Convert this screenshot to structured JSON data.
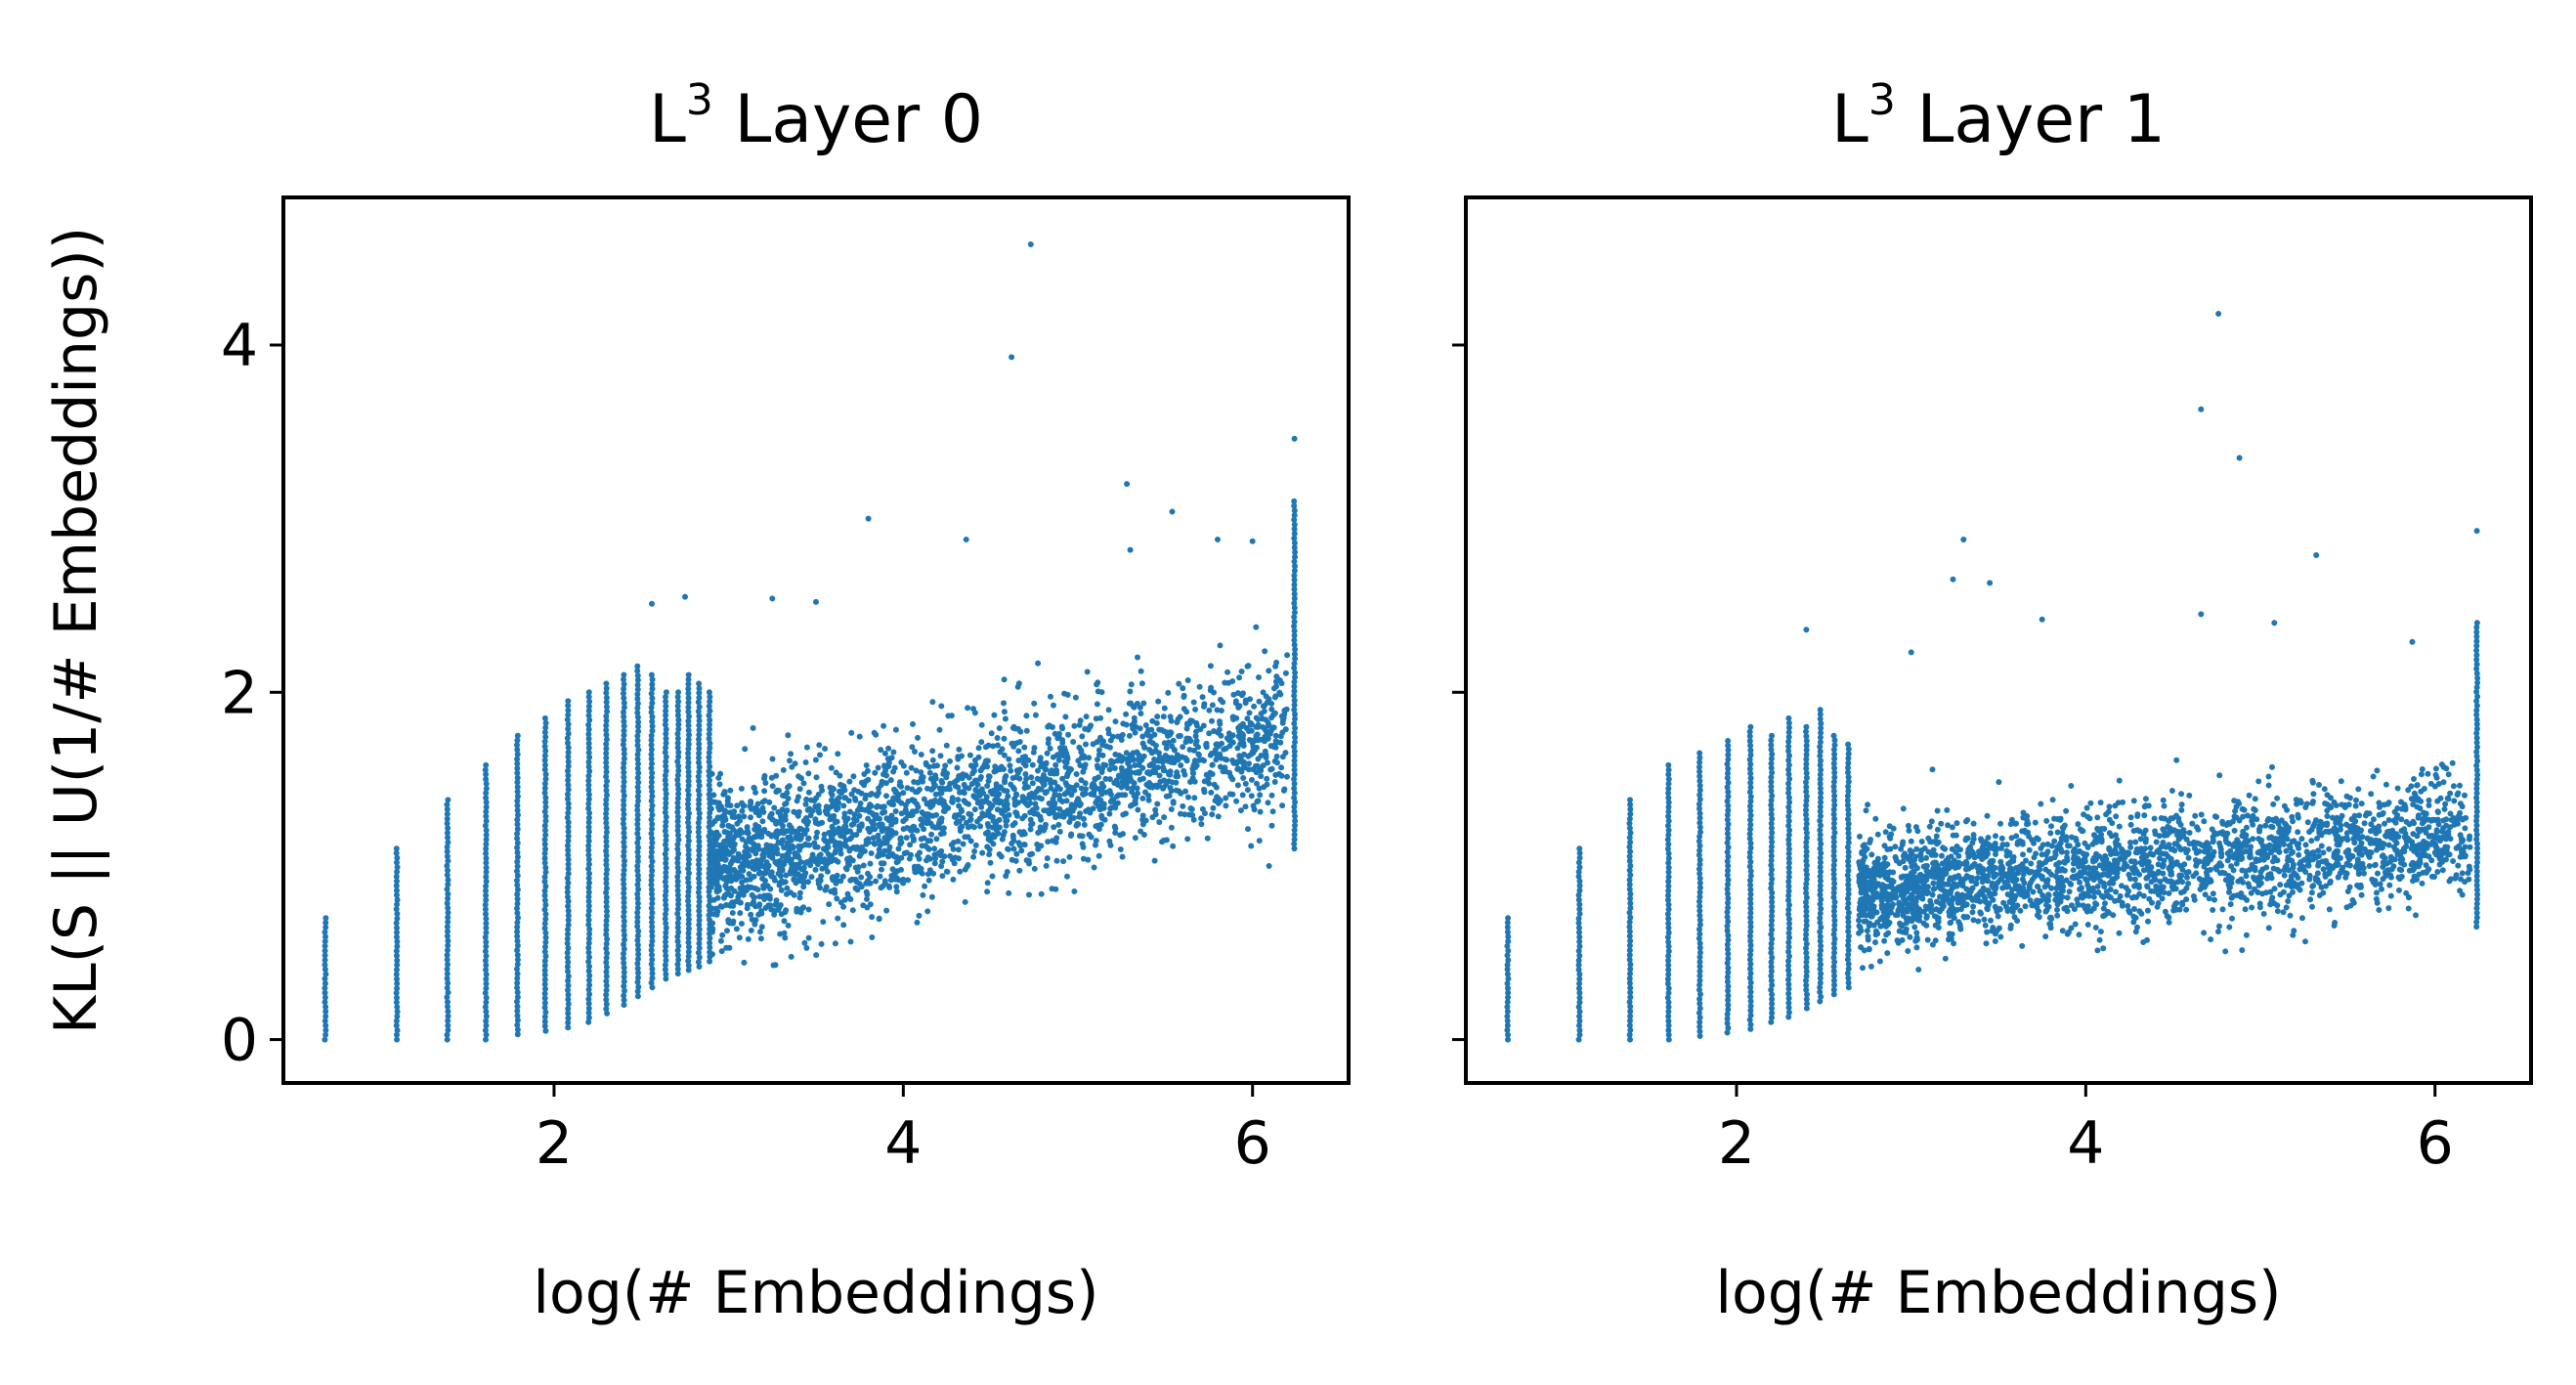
{
  "figure": {
    "ylabel": "KL(S || U(1/# Embeddings))",
    "sharey": true,
    "ylim": [
      -0.25,
      4.85
    ],
    "xlim": [
      0.45,
      6.55
    ],
    "xticks": [
      2,
      4,
      6
    ],
    "yticks": [
      0,
      2,
      4
    ],
    "marker_color": "#1f77b4"
  },
  "chart_data": [
    {
      "type": "scatter",
      "title_base": "L",
      "title_sup": "3",
      "title_rest": " Layer 0",
      "xlabel": "log(# Embeddings)",
      "ylabel": "KL(S || U(1/# Embeddings))",
      "xlim": [
        0.45,
        6.55
      ],
      "ylim": [
        -0.25,
        4.85
      ],
      "xticks": [
        "2",
        "4",
        "6"
      ],
      "yticks": [
        "0",
        "2",
        "4"
      ],
      "series": [
        {
          "name": "Layer 0",
          "columns": [
            {
              "x": 0.69,
              "ymin": 0.0,
              "ymax": 0.7
            },
            {
              "x": 1.1,
              "ymin": 0.0,
              "ymax": 1.1
            },
            {
              "x": 1.39,
              "ymin": 0.0,
              "ymax": 1.38
            },
            {
              "x": 1.61,
              "ymin": 0.0,
              "ymax": 1.58
            },
            {
              "x": 1.79,
              "ymin": 0.03,
              "ymax": 1.75
            },
            {
              "x": 1.95,
              "ymin": 0.05,
              "ymax": 1.85
            },
            {
              "x": 2.08,
              "ymin": 0.07,
              "ymax": 1.95
            },
            {
              "x": 2.2,
              "ymin": 0.1,
              "ymax": 2.0
            },
            {
              "x": 2.3,
              "ymin": 0.15,
              "ymax": 2.05
            },
            {
              "x": 2.4,
              "ymin": 0.2,
              "ymax": 2.1
            },
            {
              "x": 2.48,
              "ymin": 0.25,
              "ymax": 2.15
            },
            {
              "x": 2.56,
              "ymin": 0.3,
              "ymax": 2.1
            },
            {
              "x": 2.64,
              "ymin": 0.35,
              "ymax": 2.0
            },
            {
              "x": 2.71,
              "ymin": 0.38,
              "ymax": 2.0
            },
            {
              "x": 2.77,
              "ymin": 0.4,
              "ymax": 2.1
            },
            {
              "x": 2.83,
              "ymin": 0.42,
              "ymax": 2.05
            },
            {
              "x": 2.89,
              "ymin": 0.45,
              "ymax": 2.0
            },
            {
              "x": 6.24,
              "ymin": 1.1,
              "ymax": 3.1
            }
          ],
          "cloud": {
            "x_start": 2.9,
            "x_end": 6.2,
            "y_start": 1.0,
            "y_end": 1.75,
            "spread": 0.22
          },
          "outliers": [
            {
              "x": 4.73,
              "y": 4.58
            },
            {
              "x": 4.62,
              "y": 3.93
            },
            {
              "x": 6.24,
              "y": 3.46
            },
            {
              "x": 5.28,
              "y": 3.2
            },
            {
              "x": 5.54,
              "y": 3.04
            },
            {
              "x": 3.8,
              "y": 3.0
            },
            {
              "x": 4.36,
              "y": 2.88
            },
            {
              "x": 5.3,
              "y": 2.82
            },
            {
              "x": 3.25,
              "y": 2.54
            },
            {
              "x": 2.75,
              "y": 2.55
            },
            {
              "x": 2.56,
              "y": 2.51
            },
            {
              "x": 3.5,
              "y": 2.52
            },
            {
              "x": 5.8,
              "y": 2.88
            },
            {
              "x": 6.0,
              "y": 2.87
            }
          ]
        }
      ]
    },
    {
      "type": "scatter",
      "title_base": "L",
      "title_sup": "3",
      "title_rest": " Layer 1",
      "xlabel": "log(# Embeddings)",
      "ylabel": "",
      "xlim": [
        0.45,
        6.55
      ],
      "ylim": [
        -0.25,
        4.85
      ],
      "xticks": [
        "2",
        "4",
        "6"
      ],
      "yticks": [],
      "series": [
        {
          "name": "Layer 1",
          "columns": [
            {
              "x": 0.69,
              "ymin": 0.0,
              "ymax": 0.7
            },
            {
              "x": 1.1,
              "ymin": 0.0,
              "ymax": 1.1
            },
            {
              "x": 1.39,
              "ymin": 0.0,
              "ymax": 1.38
            },
            {
              "x": 1.61,
              "ymin": 0.0,
              "ymax": 1.58
            },
            {
              "x": 1.79,
              "ymin": 0.02,
              "ymax": 1.65
            },
            {
              "x": 1.95,
              "ymin": 0.04,
              "ymax": 1.72
            },
            {
              "x": 2.08,
              "ymin": 0.06,
              "ymax": 1.8
            },
            {
              "x": 2.2,
              "ymin": 0.1,
              "ymax": 1.75
            },
            {
              "x": 2.3,
              "ymin": 0.13,
              "ymax": 1.85
            },
            {
              "x": 2.4,
              "ymin": 0.18,
              "ymax": 1.8
            },
            {
              "x": 2.48,
              "ymin": 0.22,
              "ymax": 1.9
            },
            {
              "x": 2.56,
              "ymin": 0.26,
              "ymax": 1.75
            },
            {
              "x": 2.64,
              "ymin": 0.3,
              "ymax": 1.7
            },
            {
              "x": 6.24,
              "ymin": 0.65,
              "ymax": 2.4
            }
          ],
          "cloud": {
            "x_start": 2.7,
            "x_end": 6.2,
            "y_start": 0.85,
            "y_end": 1.18,
            "spread": 0.17
          },
          "outliers": [
            {
              "x": 4.76,
              "y": 4.18
            },
            {
              "x": 4.66,
              "y": 3.63
            },
            {
              "x": 4.88,
              "y": 3.35
            },
            {
              "x": 6.24,
              "y": 2.93
            },
            {
              "x": 3.3,
              "y": 2.88
            },
            {
              "x": 5.32,
              "y": 2.79
            },
            {
              "x": 3.24,
              "y": 2.65
            },
            {
              "x": 3.45,
              "y": 2.63
            },
            {
              "x": 3.75,
              "y": 2.42
            },
            {
              "x": 4.66,
              "y": 2.45
            },
            {
              "x": 5.08,
              "y": 2.4
            },
            {
              "x": 2.4,
              "y": 2.36
            },
            {
              "x": 5.87,
              "y": 2.29
            },
            {
              "x": 3.0,
              "y": 2.23
            }
          ]
        }
      ]
    }
  ]
}
